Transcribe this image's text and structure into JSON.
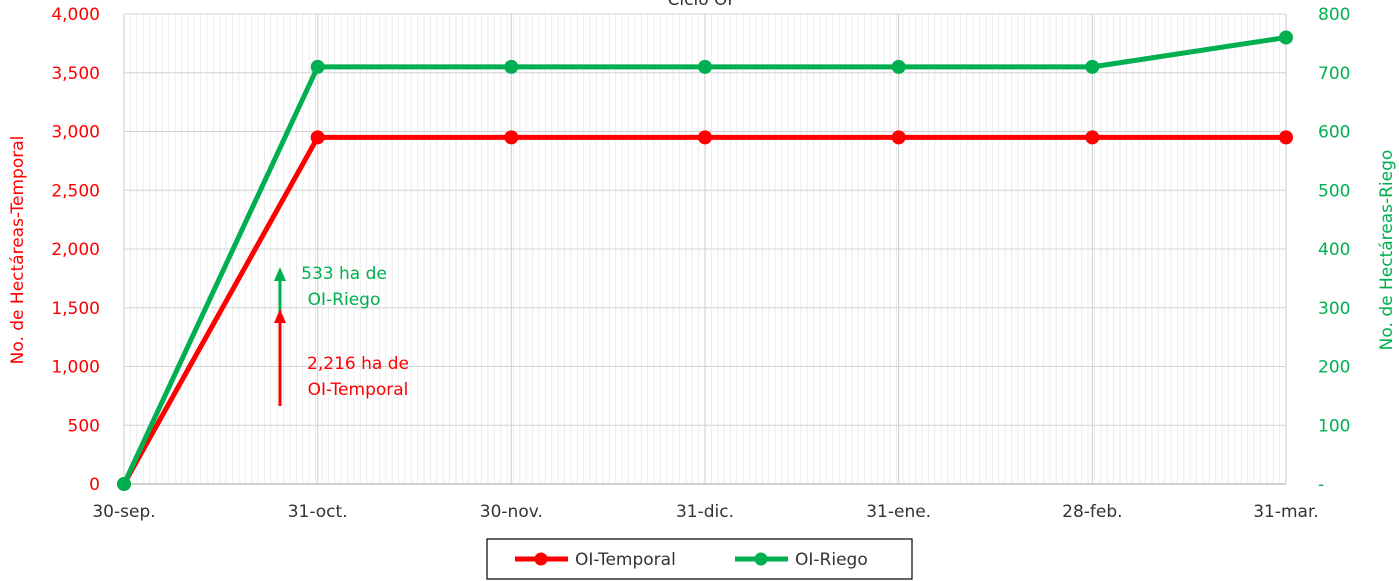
{
  "chart_data": {
    "type": "line",
    "title": "Ciclo OI",
    "categories": [
      "30-sep.",
      "31-oct.",
      "30-nov.",
      "31-dic.",
      "31-ene.",
      "28-feb.",
      "31-mar."
    ],
    "series": [
      {
        "name": "OI-Temporal",
        "axis": "left",
        "color": "#ff0000",
        "values": [
          0,
          2950,
          2950,
          2950,
          2950,
          2950,
          2950
        ]
      },
      {
        "name": "OI-Riego",
        "axis": "right",
        "color": "#00b050",
        "values": [
          0,
          710,
          710,
          710,
          710,
          710,
          760
        ]
      }
    ],
    "ylabel_left": "No. de Hectáreas-Temporal",
    "ylabel_right": "No. de Hectáreas-Riego",
    "ylim_left": [
      0,
      4000
    ],
    "ylim_right": [
      0,
      800
    ],
    "yticks_left": [
      "0",
      "500",
      "1,000",
      "1,500",
      "2,000",
      "2,500",
      "3,000",
      "3,500",
      "4,000"
    ],
    "yticks_right": [
      "-",
      "100",
      "200",
      "300",
      "400",
      "500",
      "600",
      "700",
      "800"
    ],
    "grid": true,
    "legend_position": "bottom",
    "annotations": [
      {
        "lines": [
          "533 ha de",
          "OI-Riego"
        ],
        "color": "#00b050"
      },
      {
        "lines": [
          "2,216 ha de",
          "OI-Temporal"
        ],
        "color": "#ff0000"
      }
    ]
  }
}
